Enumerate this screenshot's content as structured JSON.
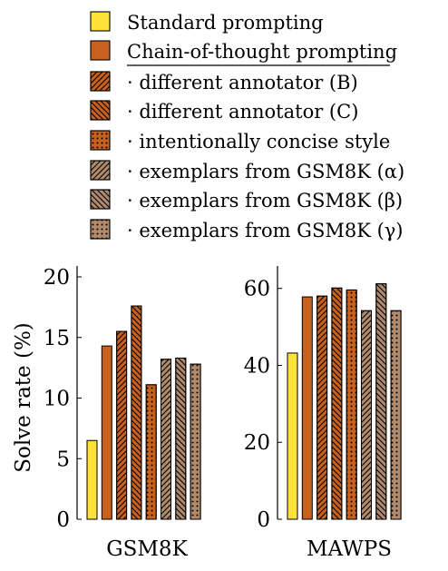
{
  "chart_data": {
    "type": "bar",
    "legend": {
      "placement": "top",
      "entries": [
        {
          "label": "Standard prompting",
          "color": "#fde23a",
          "pattern": "solid"
        },
        {
          "label": "Chain-of-thought prompting",
          "color": "#c8601e",
          "pattern": "solid"
        },
        {
          "label": "· different annotator (B)",
          "color": "#c8601e",
          "pattern": "hatch-ne"
        },
        {
          "label": "· different annotator (C)",
          "color": "#c8601e",
          "pattern": "hatch-nw"
        },
        {
          "label": "· intentionally concise style",
          "color": "#c8601e",
          "pattern": "dots"
        },
        {
          "label": "· exemplars from GSM8K (α)",
          "color": "#b08a6a",
          "pattern": "hatch-ne"
        },
        {
          "label": "· exemplars from GSM8K (β)",
          "color": "#b08a6a",
          "pattern": "hatch-nw"
        },
        {
          "label": "· exemplars from GSM8K (γ)",
          "color": "#b08a6a",
          "pattern": "dots"
        }
      ]
    },
    "ylabel": "Solve rate (%)",
    "panels": [
      {
        "xlabel": "GSM8K",
        "ylim": [
          0,
          20
        ],
        "yticks": [
          "0",
          "5",
          "10",
          "15",
          "20"
        ],
        "ytick_values": [
          0,
          5,
          10,
          15,
          20
        ],
        "values": [
          6.5,
          14.3,
          15.5,
          17.6,
          11.1,
          13.2,
          13.3,
          12.8
        ]
      },
      {
        "xlabel": "MAWPS",
        "ylim": [
          0,
          63
        ],
        "yticks": [
          "0",
          "20",
          "40",
          "60"
        ],
        "ytick_values": [
          0,
          20,
          40,
          60
        ],
        "values": [
          43.2,
          57.8,
          58.0,
          60.1,
          59.6,
          54.2,
          61.2,
          54.2
        ]
      }
    ]
  }
}
